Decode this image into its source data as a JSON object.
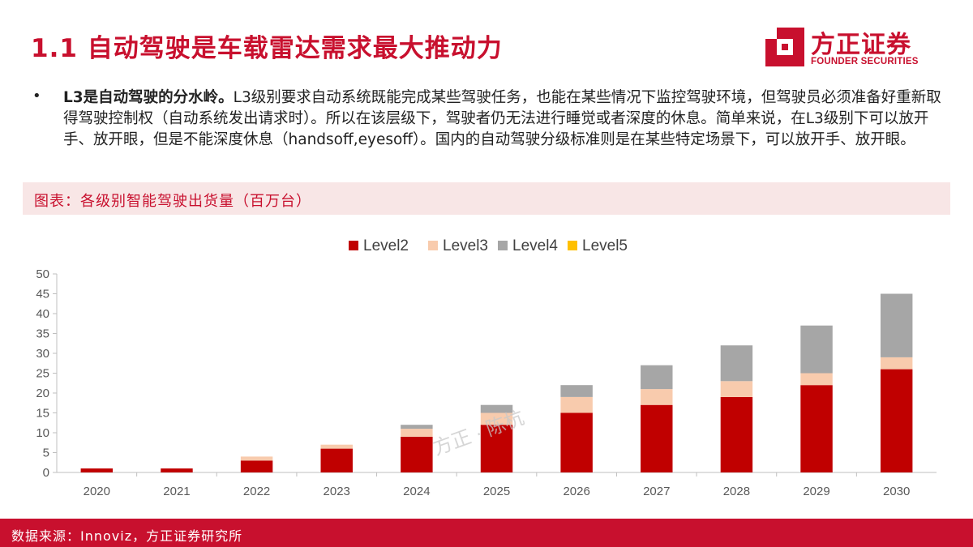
{
  "header": {
    "title": "1.1 自动驾驶是车载雷达需求最大推动力",
    "logo_cn": "方正证券",
    "logo_en": "FOUNDER SECURITIES",
    "brand_color": "#c8102e"
  },
  "bullet": {
    "bold": "L3是自动驾驶的分水岭。",
    "text": "L3级别要求自动系统既能完成某些驾驶任务，也能在某些情况下监控驾驶环境，但驾驶员必须准备好重新取得驾驶控制权（自动系统发出请求时）。所以在该层级下，驾驶者仍无法进行睡觉或者深度的休息。简单来说，在L3级别下可以放开手、放开眼，但是不能深度休息（handsoff,eyesoff）。国内的自动驾驶分级标准则是在某些特定场景下，可以放开手、放开眼。"
  },
  "caption": "图表：各级别智能驾驶出货量（百万台）",
  "watermark": "方正 · 陈杭",
  "chart_data": {
    "type": "bar",
    "stacked": true,
    "categories": [
      "2020",
      "2021",
      "2022",
      "2023",
      "2024",
      "2025",
      "2026",
      "2027",
      "2028",
      "2029",
      "2030"
    ],
    "series": [
      {
        "name": "Level2",
        "color": "#c00000",
        "values": [
          1,
          1,
          3,
          6,
          9,
          12,
          15,
          17,
          19,
          22,
          26
        ]
      },
      {
        "name": "Level3",
        "color": "#f8cbad",
        "values": [
          0,
          0,
          1,
          1,
          2,
          3,
          4,
          4,
          4,
          3,
          3
        ]
      },
      {
        "name": "Level4",
        "color": "#a6a6a6",
        "values": [
          0,
          0,
          0,
          0,
          1,
          2,
          3,
          6,
          9,
          12,
          16
        ]
      },
      {
        "name": "Level5",
        "color": "#ffc000",
        "values": [
          0,
          0,
          0,
          0,
          0,
          0,
          0,
          0,
          0,
          0,
          0
        ]
      }
    ],
    "ylim": [
      0,
      50
    ],
    "yticks": [
      0,
      5,
      10,
      15,
      20,
      25,
      30,
      35,
      40,
      45,
      50
    ],
    "grid": false,
    "legend_position": "top-center"
  },
  "footer": {
    "source": "数据来源：Innoviz，方正证券研究所"
  }
}
